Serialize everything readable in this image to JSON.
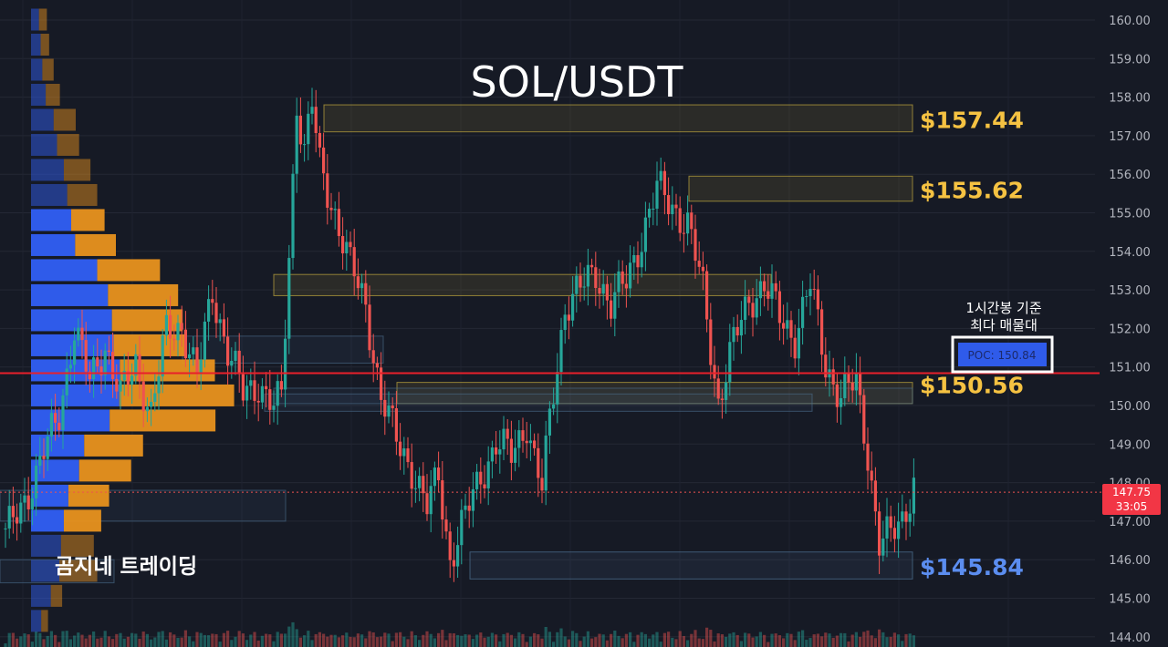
{
  "chart_data": {
    "type": "candlestick",
    "title": "SOL/USDT",
    "watermark": "곰지네 트레이딩",
    "y_axis": {
      "range": [
        144,
        160
      ],
      "ticks": [
        "144.00",
        "145.00",
        "146.00",
        "147.00",
        "148.00",
        "149.00",
        "150.00",
        "151.00",
        "152.00",
        "153.00",
        "154.00",
        "155.00",
        "156.00",
        "157.00",
        "158.00",
        "159.00",
        "160.00"
      ]
    },
    "current_price": {
      "value": "147.75",
      "countdown": "33:05",
      "price": 147.75
    },
    "poc": {
      "label": "POC: 150.84",
      "price": 150.84,
      "note_line1": "1시간봉 기준",
      "note_line2": "최다 매물대"
    },
    "levels": [
      {
        "label": "$157.44",
        "price": 157.44,
        "color": "#f5c242"
      },
      {
        "label": "$155.62",
        "price": 155.62,
        "color": "#f5c242"
      },
      {
        "label": "$150.56",
        "price": 150.56,
        "color": "#f5c242"
      },
      {
        "label": "$145.84",
        "price": 145.84,
        "color": "#5b8def"
      }
    ],
    "zones": [
      {
        "from": 157.1,
        "to": 157.8,
        "color": "#b8a13c"
      },
      {
        "from": 155.3,
        "to": 155.95,
        "color": "#b8a13c"
      },
      {
        "from": 152.85,
        "to": 153.4,
        "color": "#b8a13c"
      },
      {
        "from": 150.05,
        "to": 150.6,
        "color": "#b8a13c"
      },
      {
        "from": 145.5,
        "to": 146.2,
        "color": "#4c6f8f"
      }
    ],
    "volume_profile": [
      {
        "price": 160.0,
        "buy": 14,
        "sell": 14
      },
      {
        "price": 159.35,
        "buy": 17,
        "sell": 15
      },
      {
        "price": 158.7,
        "buy": 20,
        "sell": 20
      },
      {
        "price": 158.05,
        "buy": 26,
        "sell": 25
      },
      {
        "price": 157.4,
        "buy": 40,
        "sell": 39
      },
      {
        "price": 156.75,
        "buy": 46,
        "sell": 39
      },
      {
        "price": 156.1,
        "buy": 58,
        "sell": 47
      },
      {
        "price": 155.45,
        "buy": 64,
        "sell": 53
      },
      {
        "price": 154.8,
        "buy": 71,
        "sell": 59
      },
      {
        "price": 154.15,
        "buy": 78,
        "sell": 72
      },
      {
        "price": 153.5,
        "buy": 117,
        "sell": 111
      },
      {
        "price": 152.85,
        "buy": 136,
        "sell": 124
      },
      {
        "price": 152.2,
        "buy": 143,
        "sell": 125
      },
      {
        "price": 151.55,
        "buy": 146,
        "sell": 127
      },
      {
        "price": 150.9,
        "buy": 157,
        "sell": 168
      },
      {
        "price": 150.25,
        "buy": 156,
        "sell": 203
      },
      {
        "price": 149.6,
        "buy": 139,
        "sell": 187
      },
      {
        "price": 148.95,
        "buy": 94,
        "sell": 104
      },
      {
        "price": 148.3,
        "buy": 85,
        "sell": 92
      },
      {
        "price": 147.65,
        "buy": 66,
        "sell": 72
      },
      {
        "price": 147.0,
        "buy": 58,
        "sell": 66
      },
      {
        "price": 146.35,
        "buy": 53,
        "sell": 58
      },
      {
        "price": 145.7,
        "buy": 50,
        "sell": 67
      },
      {
        "price": 145.05,
        "buy": 35,
        "sell": 20
      },
      {
        "price": 144.4,
        "buy": 18,
        "sell": 12
      }
    ],
    "anchors": [
      [
        0,
        146.6
      ],
      [
        8,
        148.2
      ],
      [
        14,
        149.8
      ],
      [
        18,
        152.0
      ],
      [
        22,
        150.6
      ],
      [
        26,
        151.6
      ],
      [
        30,
        150.2
      ],
      [
        34,
        151.1
      ],
      [
        38,
        149.8
      ],
      [
        42,
        151.9
      ],
      [
        46,
        152.1
      ],
      [
        50,
        150.7
      ],
      [
        54,
        153.0
      ],
      [
        58,
        151.4
      ],
      [
        62,
        150.3
      ],
      [
        66,
        150.6
      ],
      [
        70,
        149.9
      ],
      [
        72,
        150.2
      ],
      [
        74,
        153.9
      ],
      [
        76,
        157.9
      ],
      [
        78,
        156.6
      ],
      [
        80,
        157.8
      ],
      [
        82,
        156.2
      ],
      [
        86,
        155.0
      ],
      [
        90,
        153.6
      ],
      [
        94,
        152.6
      ],
      [
        98,
        150.2
      ],
      [
        102,
        149.1
      ],
      [
        106,
        148.4
      ],
      [
        110,
        147.3
      ],
      [
        113,
        148.2
      ],
      [
        116,
        146.0
      ],
      [
        120,
        147.1
      ],
      [
        124,
        148.2
      ],
      [
        128,
        149.0
      ],
      [
        132,
        148.7
      ],
      [
        136,
        149.6
      ],
      [
        138,
        148.6
      ],
      [
        140,
        147.8
      ],
      [
        142,
        149.6
      ],
      [
        146,
        152.6
      ],
      [
        150,
        153.0
      ],
      [
        154,
        153.5
      ],
      [
        158,
        152.6
      ],
      [
        162,
        153.2
      ],
      [
        166,
        154.4
      ],
      [
        170,
        155.6
      ],
      [
        174,
        155.2
      ],
      [
        178,
        154.7
      ],
      [
        182,
        153.0
      ],
      [
        186,
        150.1
      ],
      [
        190,
        151.6
      ],
      [
        194,
        152.8
      ],
      [
        198,
        153.1
      ],
      [
        202,
        152.3
      ],
      [
        206,
        151.8
      ],
      [
        210,
        153.1
      ],
      [
        214,
        151.1
      ],
      [
        218,
        150.2
      ],
      [
        222,
        150.6
      ],
      [
        225,
        148.8
      ],
      [
        228,
        146.4
      ],
      [
        231,
        146.6
      ],
      [
        234,
        147.1
      ],
      [
        237,
        148.0
      ]
    ]
  }
}
